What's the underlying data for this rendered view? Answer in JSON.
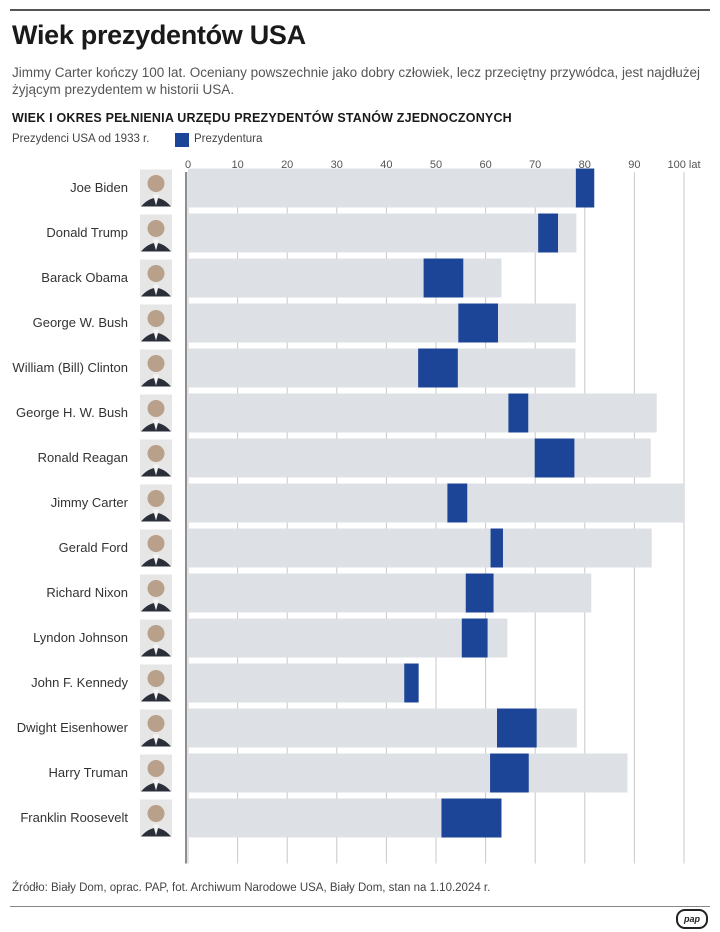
{
  "header": {
    "title": "Wiek prezydentów USA",
    "subtitle": "Jimmy Carter kończy 100 lat. Oceniany powszechnie jako dobry człowiek, lecz przeciętny przywódca, jest najdłużej żyjącym prezydentem w historii USA.",
    "section_title": "WIEK I OKRES PEŁNIENIA URZĘDU PREZYDENTÓW STANÓW ZJEDNOCZONYCH",
    "legend_left": "Prezydenci USA od 1933 r.",
    "legend_right": "Prezydentura"
  },
  "footer": {
    "source": "Źródło: Biały Dom, oprac. PAP, fot. Archiwum Narodowe USA, Biały Dom, stan na 1.10.2024 r.",
    "logo": "pap"
  },
  "colors": {
    "lifespan": "#dde0e4",
    "presidency": "#1c4597",
    "grid": "#c8c8c8"
  },
  "chart_data": {
    "type": "bar",
    "title": "WIEK I OKRES PEŁNIENIA URZĘDU PREZYDENTÓW STANÓW ZJEDNOCZONYCH",
    "xlabel": "lat",
    "xlim": [
      0,
      100
    ],
    "ticks": [
      "0",
      "10",
      "20",
      "30",
      "40",
      "50",
      "60",
      "70",
      "80",
      "90",
      "100 lat"
    ],
    "tick_values": [
      0,
      10,
      20,
      30,
      40,
      50,
      60,
      70,
      80,
      90,
      100
    ],
    "series": [
      {
        "name": "Wiek",
        "role": "lifespan"
      },
      {
        "name": "Prezydentura",
        "role": "presidency"
      }
    ],
    "presidents": [
      {
        "name": "Joe Biden",
        "age": 81.9,
        "term_start": 78.2,
        "term_end": 81.9
      },
      {
        "name": "Donald Trump",
        "age": 78.3,
        "term_start": 70.6,
        "term_end": 74.6
      },
      {
        "name": "Barack Obama",
        "age": 63.2,
        "term_start": 47.5,
        "term_end": 55.5
      },
      {
        "name": "George W. Bush",
        "age": 78.2,
        "term_start": 54.5,
        "term_end": 62.5
      },
      {
        "name": "William (Bill) Clinton",
        "age": 78.1,
        "term_start": 46.4,
        "term_end": 54.4
      },
      {
        "name": "George H. W. Bush",
        "age": 94.5,
        "term_start": 64.6,
        "term_end": 68.6
      },
      {
        "name": "Ronald Reagan",
        "age": 93.3,
        "term_start": 69.9,
        "term_end": 77.9
      },
      {
        "name": "Jimmy Carter",
        "age": 100.0,
        "term_start": 52.3,
        "term_end": 56.3
      },
      {
        "name": "Gerald Ford",
        "age": 93.5,
        "term_start": 61.0,
        "term_end": 63.5
      },
      {
        "name": "Richard Nixon",
        "age": 81.3,
        "term_start": 56.0,
        "term_end": 61.6
      },
      {
        "name": "Lyndon Johnson",
        "age": 64.4,
        "term_start": 55.2,
        "term_end": 60.4
      },
      {
        "name": "John F. Kennedy",
        "age": 46.5,
        "term_start": 43.6,
        "term_end": 46.5
      },
      {
        "name": "Dwight Eisenhower",
        "age": 78.4,
        "term_start": 62.3,
        "term_end": 70.3
      },
      {
        "name": "Harry Truman",
        "age": 88.6,
        "term_start": 60.9,
        "term_end": 68.7
      },
      {
        "name": "Franklin Roosevelt",
        "age": 63.2,
        "term_start": 51.1,
        "term_end": 63.2
      }
    ]
  }
}
